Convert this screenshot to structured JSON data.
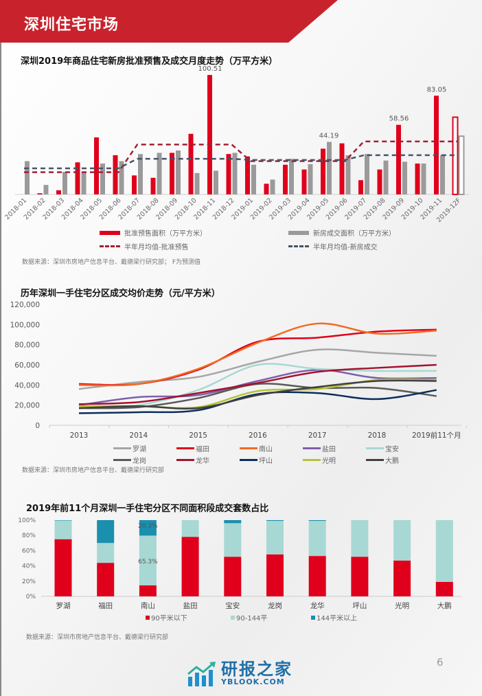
{
  "header": {
    "title": "深圳住宅市场",
    "colors": {
      "band": "#c8232c"
    }
  },
  "page_number": "6",
  "watermark": {
    "cn": "研报之家",
    "en": "YBLOOK.COM"
  },
  "chart_data": [
    {
      "type": "bar",
      "title": "深圳2019年商品住宅新房批准预售及成交月度走势（万平方米）",
      "categories": [
        "2018-01",
        "2018-02",
        "2018-03",
        "2018-04",
        "2018-05",
        "2018-06",
        "2018-07",
        "2018-08",
        "2018-09",
        "2018-10",
        "2018-11",
        "2018-12",
        "2019-01",
        "2019-02",
        "2019-03",
        "2019-04",
        "2019-05",
        "2019-06",
        "2019-07",
        "2019-08",
        "2019-09",
        "2019-10",
        "2019-11",
        "2019-12F"
      ],
      "series": [
        {
          "name": "批准预售面积（万平方米）",
          "kind": "bar",
          "color": "#e0001b",
          "values": [
            0,
            1,
            3.5,
            27,
            48,
            33,
            16,
            14,
            35,
            51,
            100.51,
            34,
            32,
            9,
            25,
            21,
            38.5,
            43,
            12,
            21,
            58.56,
            26,
            83.05,
            65
          ]
        },
        {
          "name": "新房成交面积（万平方米）",
          "kind": "bar",
          "color": "#9a9a9a",
          "values": [
            28,
            8,
            19,
            19,
            26,
            28,
            34,
            35,
            37,
            18,
            20,
            35,
            25,
            12.5,
            30,
            25.5,
            44.19,
            33,
            34,
            28.5,
            27.5,
            26,
            33,
            49
          ]
        },
        {
          "name": "半年月均值-批准预售",
          "kind": "dashed-line",
          "color": "#a31f34",
          "values": [
            18.7,
            18.7,
            18.7,
            18.7,
            18.7,
            18.7,
            42,
            42,
            42,
            42,
            42,
            42,
            28,
            28,
            28,
            28,
            28,
            28,
            44.6,
            44.6,
            44.6,
            44.6,
            44.6,
            44.6
          ]
        },
        {
          "name": "半年月均值-新房成交",
          "kind": "dashed-line",
          "color": "#44546a",
          "values": [
            22,
            22,
            22,
            22,
            22,
            22,
            30,
            30,
            30,
            30,
            30,
            30,
            29,
            29,
            29,
            29,
            29,
            29,
            33,
            33,
            33,
            33,
            33,
            33
          ]
        }
      ],
      "forecast_category": "2019-12F",
      "data_labels": [
        {
          "category": "2018-11",
          "series": 0,
          "text": "100.51"
        },
        {
          "category": "2019-05",
          "series": 1,
          "text": "44.19"
        },
        {
          "category": "2019-09",
          "series": 0,
          "text": "58.56"
        },
        {
          "category": "2019-11",
          "series": 0,
          "text": "83.05"
        }
      ],
      "ylim": [
        0,
        110
      ],
      "source": "数据来源：深圳市房地产信息平台、戴德梁行研究部；  F为预测值"
    },
    {
      "type": "line",
      "title": "历年深圳一手住宅分区成交均价走势（元/平方米）",
      "categories": [
        "2013",
        "2014",
        "2015",
        "2016",
        "2017",
        "2018",
        "2019前11个月"
      ],
      "yticks": [
        "0",
        "20,000",
        "40,000",
        "60,000",
        "80,000",
        "100,000",
        "120,000"
      ],
      "ylim": [
        0,
        120000
      ],
      "series": [
        {
          "name": "罗湖",
          "color": "#a6a6a6",
          "values": [
            36000,
            43000,
            48000,
            63000,
            75000,
            72000,
            69000
          ]
        },
        {
          "name": "福田",
          "color": "#e0001b",
          "values": [
            41000,
            41000,
            55000,
            83000,
            87000,
            93000,
            95000
          ]
        },
        {
          "name": "南山",
          "color": "#f26b21",
          "values": [
            40000,
            41000,
            56000,
            82000,
            101000,
            91000,
            94000
          ]
        },
        {
          "name": "盐田",
          "color": "#7f5fa8",
          "values": [
            20000,
            28000,
            30000,
            44000,
            55000,
            47000,
            47000
          ]
        },
        {
          "name": "宝安",
          "color": "#a8d8d3",
          "values": [
            18000,
            20000,
            35000,
            60000,
            56000,
            54000,
            54000
          ]
        },
        {
          "name": "龙岗",
          "color": "#595959",
          "values": [
            17000,
            18000,
            27000,
            41000,
            37000,
            37000,
            29000
          ]
        },
        {
          "name": "龙华",
          "color": "#a3122e",
          "values": [
            21000,
            23000,
            32000,
            42000,
            53000,
            57000,
            60000
          ]
        },
        {
          "name": "坪山",
          "color": "#0b2e5a",
          "values": [
            12000,
            13000,
            15000,
            31000,
            32000,
            26000,
            35000
          ]
        },
        {
          "name": "光明",
          "color": "#b5c334",
          "values": [
            19000,
            19000,
            18000,
            34000,
            36000,
            45000,
            45000
          ]
        },
        {
          "name": "大鹏",
          "color": "#404040",
          "values": [
            17000,
            19000,
            17000,
            30000,
            38000,
            44000,
            44000
          ]
        }
      ],
      "source": "数据来源：深圳市房地产信息平台、戴德梁行研究部"
    },
    {
      "type": "bar",
      "stacked": true,
      "title": "2019年前11个月深圳一手住宅分区不同面积段成交套数占比",
      "categories": [
        "罗湖",
        "福田",
        "南山",
        "盐田",
        "宝安",
        "龙岗",
        "龙华",
        "坪山",
        "光明",
        "大鹏"
      ],
      "yticks": [
        "0%",
        "20%",
        "40%",
        "60%",
        "80%",
        "100%"
      ],
      "ylim": [
        0,
        100
      ],
      "series": [
        {
          "name": "90平米以下",
          "color": "#e0001b",
          "values": [
            75,
            44,
            14.4,
            78,
            52,
            55,
            53,
            52,
            47,
            19
          ]
        },
        {
          "name": "90-144平",
          "color": "#a8d8d3",
          "values": [
            24.5,
            26,
            65.3,
            22,
            44,
            44,
            46,
            48,
            53,
            81
          ]
        },
        {
          "name": "144平米以上",
          "color": "#1a8fae",
          "values": [
            0.5,
            30,
            20.3,
            0,
            4,
            1,
            1,
            0,
            0,
            0
          ]
        }
      ],
      "data_labels": [
        {
          "category": "南山",
          "series": 2,
          "text": "20.3%"
        },
        {
          "category": "南山",
          "series": 1,
          "text": "65.3%"
        }
      ],
      "source": "数据来源：深圳市房地产信息平台、戴德梁行研究部"
    }
  ]
}
